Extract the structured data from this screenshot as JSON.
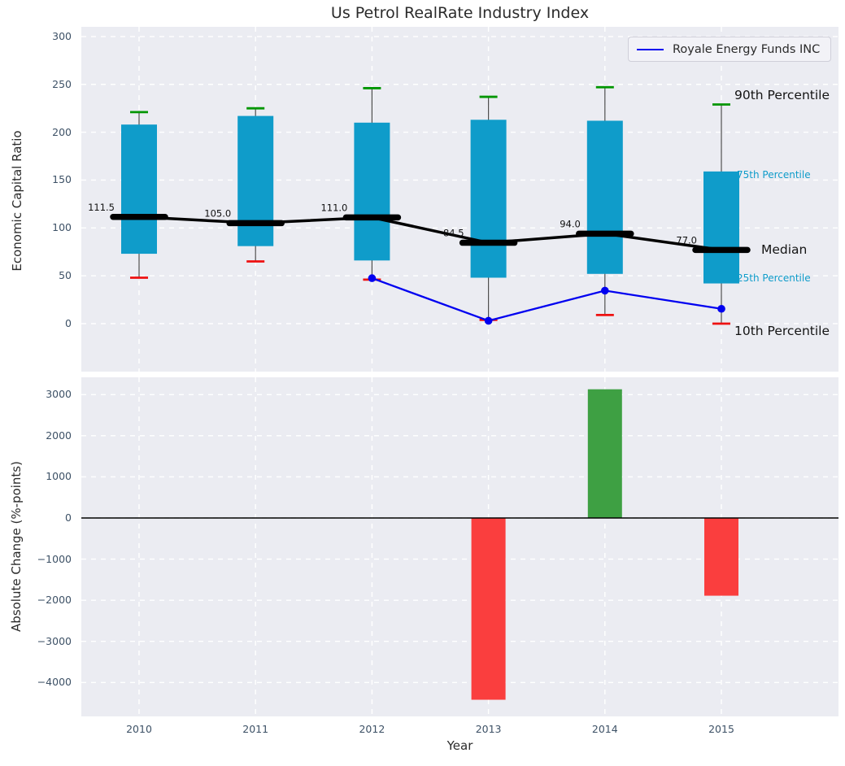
{
  "title": "Us Petrol RealRate Industry Index",
  "xlabel": "Year",
  "categories": [
    "2010",
    "2011",
    "2012",
    "2013",
    "2014",
    "2015"
  ],
  "colors": {
    "axes_background": "#ebecf2",
    "grid": "#ffffff",
    "box": "#0f9cca",
    "p90_cap": "#009600",
    "p10_cap": "#ee1111",
    "median": "#000000",
    "series_line": "#0000f0",
    "whisker": "#4f4f4f",
    "bar_positive": "#3ea043",
    "bar_negative": "#fa3e3e",
    "zero_line": "#000000",
    "tick_label": "#3d5166"
  },
  "chart_data": [
    {
      "type": "box-percentile",
      "title": "Us Petrol RealRate Industry Index",
      "ylabel": "Economic Capital Ratio",
      "ylim": [
        -50,
        310
      ],
      "yticks": [
        0,
        50,
        100,
        150,
        200,
        250,
        300
      ],
      "grid": true,
      "categories": [
        "2010",
        "2011",
        "2012",
        "2013",
        "2014",
        "2015"
      ],
      "percentiles": {
        "p90": [
          221,
          225,
          246,
          237,
          247,
          229
        ],
        "p75": [
          208,
          217,
          210,
          213,
          212,
          159
        ],
        "median": [
          111.5,
          105.0,
          111.0,
          84.5,
          94.0,
          77.0
        ],
        "p25": [
          73,
          81,
          66,
          48,
          52,
          42
        ],
        "p10": [
          48,
          65,
          46,
          4,
          9,
          0
        ]
      },
      "median_labels": [
        "111.5",
        "105.0",
        "111.0",
        "84.5",
        "94.0",
        "77.0"
      ],
      "series": [
        {
          "name": "Royale Energy Funds INC",
          "values": [
            null,
            null,
            47.5,
            3,
            34.5,
            15.5
          ]
        }
      ],
      "legend": {
        "label": "Royale Energy Funds INC",
        "position": "upper right"
      },
      "annotations": [
        {
          "label": "90th Percentile",
          "value": 237,
          "style": "large"
        },
        {
          "label": "75th Percentile",
          "value": 155,
          "style": "small"
        },
        {
          "label": "Median",
          "value": 76,
          "style": "large"
        },
        {
          "label": "25th Percentile",
          "value": 47,
          "style": "small"
        },
        {
          "label": "10th Percentile",
          "value": -9,
          "style": "large"
        }
      ]
    },
    {
      "type": "bar",
      "ylabel": "Absolute Change (%-points)",
      "xlabel": "Year",
      "ylim": [
        -4825,
        3420
      ],
      "yticks": [
        3000,
        2000,
        1000,
        0,
        -1000,
        -2000,
        -3000,
        -4000
      ],
      "grid": true,
      "categories": [
        "2010",
        "2011",
        "2012",
        "2013",
        "2014",
        "2015"
      ],
      "values": [
        null,
        null,
        null,
        -4420,
        3130,
        -1890
      ]
    }
  ]
}
